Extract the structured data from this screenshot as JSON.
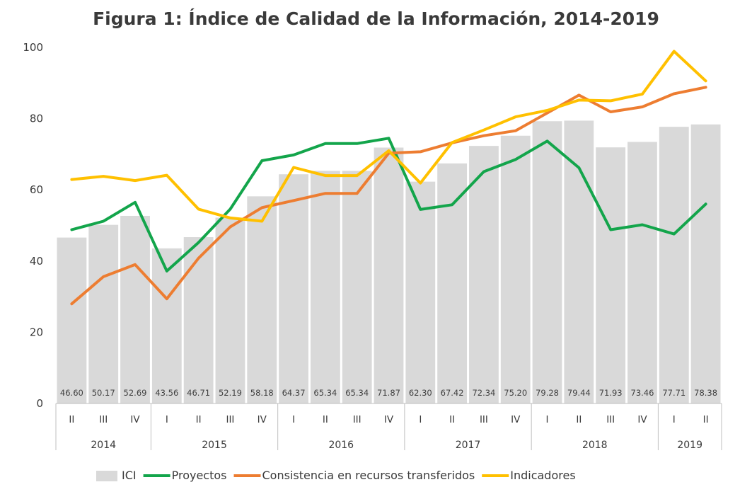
{
  "chart_data": {
    "type": "bar+line",
    "title": "Figura 1: Índice de Calidad de la Información, 2014-2019",
    "ylim": [
      0,
      100
    ],
    "yticks": [
      0,
      20,
      40,
      60,
      80,
      100
    ],
    "grid": false,
    "legend_position": "bottom",
    "categories": [
      "II",
      "III",
      "IV",
      "I",
      "II",
      "III",
      "IV",
      "I",
      "II",
      "III",
      "IV",
      "I",
      "II",
      "III",
      "IV",
      "I",
      "II",
      "III",
      "IV",
      "I",
      "II"
    ],
    "groups": [
      {
        "label": "2014",
        "count": 3
      },
      {
        "label": "2015",
        "count": 4
      },
      {
        "label": "2016",
        "count": 4
      },
      {
        "label": "2017",
        "count": 4
      },
      {
        "label": "2018",
        "count": 4
      },
      {
        "label": "2019",
        "count": 2
      }
    ],
    "bars": {
      "name": "ICI",
      "color": "#d9d9d9",
      "values": [
        46.6,
        50.17,
        52.69,
        43.56,
        46.71,
        52.19,
        58.18,
        64.37,
        65.34,
        65.34,
        71.87,
        62.3,
        67.42,
        72.34,
        75.2,
        79.28,
        79.44,
        71.93,
        73.46,
        77.71,
        78.38
      ],
      "labels": [
        "46.60",
        "50.17",
        "52.69",
        "43.56",
        "46.71",
        "52.19",
        "58.18",
        "64.37",
        "65.34",
        "65.34",
        "71.87",
        "62.30",
        "67.42",
        "72.34",
        "75.20",
        "79.28",
        "79.44",
        "71.93",
        "73.46",
        "77.71",
        "78.38"
      ]
    },
    "series": [
      {
        "name": "Proyectos",
        "color": "#13a54b",
        "values": [
          48.8,
          51.2,
          56.5,
          37.2,
          45.2,
          54.6,
          68.2,
          69.8,
          73.0,
          73.0,
          74.5,
          54.5,
          55.8,
          65.1,
          68.5,
          73.7,
          66.2,
          48.8,
          50.2,
          47.6,
          56.0
        ]
      },
      {
        "name": "Consistencia en recursos transferidos",
        "color": "#ed7d31",
        "values": [
          28.0,
          35.6,
          39.0,
          29.4,
          40.8,
          49.6,
          55.0,
          57.0,
          59.0,
          59.0,
          70.3,
          70.7,
          73.2,
          75.2,
          76.6,
          81.6,
          86.6,
          81.9,
          83.3,
          87.0,
          88.8
        ]
      },
      {
        "name": "Indicadores",
        "color": "#ffc000",
        "values": [
          62.9,
          63.8,
          62.6,
          64.1,
          54.6,
          52.1,
          51.2,
          66.3,
          64.0,
          64.0,
          71.0,
          61.9,
          73.3,
          76.8,
          80.5,
          82.3,
          85.2,
          85.0,
          86.9,
          98.9,
          90.6
        ]
      }
    ],
    "legend": [
      "ICI",
      "Proyectos",
      "Consistencia en recursos transferidos",
      "Indicadores"
    ]
  }
}
